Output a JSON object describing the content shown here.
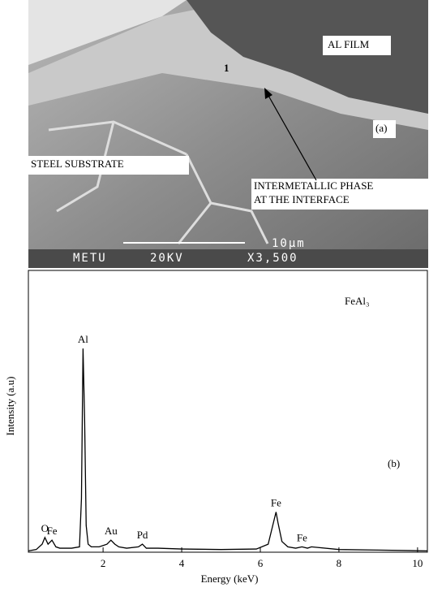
{
  "panel_a": {
    "film_label": "AL FILM",
    "marker": "1",
    "panel_label": "(a)",
    "substrate_label": "STEEL SUBSTRATE",
    "phase_label": [
      "INTERMETALLIC PHASE",
      "AT THE INTERFACE"
    ],
    "info_bar": {
      "lab": "METU",
      "voltage": "20KV",
      "scale": "10µm",
      "magnification": "X3,500"
    }
  },
  "chart_data": {
    "type": "line",
    "title": "FeAl₃",
    "panel_label": "(b)",
    "x_label": "Energy (keV)",
    "y_label": "Intensity (a.u)",
    "xlim": [
      0.1,
      10.25
    ],
    "xticks": [
      2,
      4,
      6,
      8,
      10
    ],
    "ylim": [
      0,
      100
    ],
    "color": "#000000",
    "x": [
      0.1,
      0.3,
      0.45,
      0.52,
      0.6,
      0.7,
      0.8,
      0.9,
      1.0,
      1.2,
      1.4,
      1.45,
      1.49,
      1.53,
      1.57,
      1.62,
      1.7,
      1.9,
      2.1,
      2.2,
      2.3,
      2.4,
      2.6,
      2.9,
      3.0,
      3.1,
      3.4,
      4,
      5,
      5.9,
      6.2,
      6.35,
      6.4,
      6.45,
      6.55,
      6.7,
      6.9,
      7.06,
      7.2,
      7.3,
      8,
      9,
      10.25
    ],
    "values": [
      0.5,
      1,
      3,
      5.5,
      3,
      4.5,
      2,
      1.5,
      1.5,
      1.5,
      2,
      20,
      76,
      50,
      10,
      3,
      2,
      2,
      3,
      4.5,
      3,
      2,
      1.5,
      2,
      3,
      1.5,
      1.5,
      1.2,
      1,
      1.2,
      3,
      12,
      15,
      11,
      4,
      2,
      1.5,
      2,
      1.5,
      2,
      1,
      0.8,
      0.5
    ],
    "annotations": [
      {
        "text": "O",
        "x": 0.52
      },
      {
        "text": "Fe",
        "x": 0.7
      },
      {
        "text": "Al",
        "x": 1.49
      },
      {
        "text": "Au",
        "x": 2.2
      },
      {
        "text": "Pd",
        "x": 3.0
      },
      {
        "text": "Fe",
        "x": 6.4
      },
      {
        "text": "Fe",
        "x": 7.06
      }
    ]
  }
}
